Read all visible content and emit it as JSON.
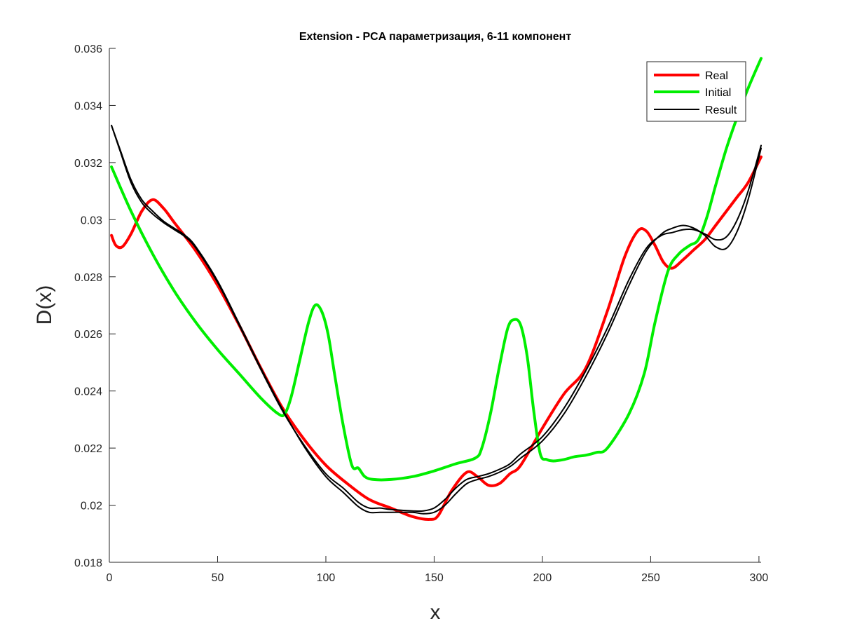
{
  "chart_data": {
    "type": "line",
    "title": "Extension - PCA параметризация, 6-11 компонент",
    "xlabel": "x",
    "ylabel": "D(x)",
    "xlim": [
      0,
      301
    ],
    "ylim": [
      0.018,
      0.036
    ],
    "xticks": [
      0,
      50,
      100,
      150,
      200,
      250,
      300
    ],
    "yticks": [
      0.018,
      0.02,
      0.022,
      0.024,
      0.026,
      0.028,
      0.03,
      0.032,
      0.034,
      0.036
    ],
    "xtick_labels": [
      "0",
      "50",
      "100",
      "150",
      "200",
      "250",
      "300"
    ],
    "ytick_labels": [
      "0.018",
      "0.02",
      "0.022",
      "0.024",
      "0.026",
      "0.028",
      "0.03",
      "0.032",
      "0.034",
      "0.036"
    ],
    "grid": false,
    "legend": {
      "position": "top-right",
      "entries": [
        "Real",
        "Initial",
        "Result"
      ]
    },
    "series": [
      {
        "name": "Real",
        "color": "#ff0000",
        "width": 4,
        "x": [
          1,
          3,
          6,
          10,
          15,
          20,
          25,
          30,
          40,
          50,
          60,
          70,
          80,
          90,
          100,
          110,
          120,
          130,
          140,
          148,
          152,
          158,
          165,
          170,
          175,
          180,
          185,
          190,
          200,
          210,
          220,
          230,
          238,
          244,
          248,
          252,
          256,
          260,
          265,
          270,
          275,
          280,
          285,
          290,
          295,
          301
        ],
        "y": [
          0.02945,
          0.0291,
          0.02905,
          0.0295,
          0.0303,
          0.0307,
          0.0304,
          0.0299,
          0.0289,
          0.0277,
          0.0263,
          0.0248,
          0.0234,
          0.0223,
          0.0214,
          0.02075,
          0.0202,
          0.0199,
          0.0196,
          0.0195,
          0.01965,
          0.0205,
          0.02115,
          0.021,
          0.0207,
          0.02075,
          0.0211,
          0.0214,
          0.0227,
          0.0239,
          0.0248,
          0.0268,
          0.0287,
          0.0296,
          0.0296,
          0.0291,
          0.0285,
          0.0283,
          0.0286,
          0.02895,
          0.0293,
          0.0298,
          0.0303,
          0.0308,
          0.0313,
          0.0322
        ]
      },
      {
        "name": "Initial",
        "color": "#00ee00",
        "width": 4,
        "x": [
          1,
          10,
          20,
          30,
          40,
          50,
          60,
          70,
          78,
          81,
          84,
          88,
          92,
          95,
          98,
          101,
          104,
          108,
          112,
          115,
          118,
          122,
          130,
          140,
          150,
          160,
          169,
          172,
          176,
          180,
          184,
          187,
          190,
          193,
          196,
          199,
          202,
          205,
          210,
          215,
          220,
          225,
          230,
          240,
          247,
          252,
          258,
          263,
          268,
          272,
          276,
          280,
          285,
          290,
          295,
          301
        ],
        "y": [
          0.03185,
          0.0303,
          0.0288,
          0.0275,
          0.0264,
          0.02545,
          0.0246,
          0.02375,
          0.0232,
          0.0232,
          0.0238,
          0.0251,
          0.0264,
          0.027,
          0.0268,
          0.026,
          0.0246,
          0.0228,
          0.0214,
          0.0213,
          0.021,
          0.0209,
          0.0209,
          0.021,
          0.0212,
          0.02145,
          0.02165,
          0.022,
          0.0232,
          0.0248,
          0.0262,
          0.0265,
          0.0263,
          0.0252,
          0.0233,
          0.0218,
          0.0216,
          0.02155,
          0.0216,
          0.0217,
          0.02175,
          0.02185,
          0.022,
          0.0232,
          0.0246,
          0.0264,
          0.0282,
          0.0288,
          0.0291,
          0.0293,
          0.0301,
          0.0312,
          0.0325,
          0.0336,
          0.0346,
          0.03565
        ]
      },
      {
        "name": "Result",
        "color": "#000000",
        "width": 2,
        "x": [
          1,
          5,
          10,
          15,
          20,
          25,
          30,
          35,
          40,
          50,
          60,
          70,
          80,
          90,
          100,
          108,
          115,
          120,
          125,
          130,
          140,
          145,
          150,
          155,
          160,
          165,
          170,
          175,
          180,
          185,
          190,
          200,
          210,
          220,
          230,
          240,
          248,
          255,
          260,
          265,
          270,
          275,
          280,
          285,
          290,
          295,
          301
        ],
        "y": [
          0.0333,
          0.0324,
          0.0313,
          0.0306,
          0.0302,
          0.0299,
          0.02965,
          0.0294,
          0.029,
          0.0278,
          0.0263,
          0.02475,
          0.0233,
          0.0221,
          0.0211,
          0.0206,
          0.0201,
          0.0199,
          0.0199,
          0.01985,
          0.0198,
          0.0198,
          0.0199,
          0.0202,
          0.0206,
          0.0209,
          0.021,
          0.0211,
          0.02125,
          0.02145,
          0.0218,
          0.0224,
          0.0234,
          0.0247,
          0.0262,
          0.0279,
          0.029,
          0.02945,
          0.02955,
          0.02965,
          0.02965,
          0.0295,
          0.0293,
          0.0294,
          0.03,
          0.031,
          0.0326
        ]
      },
      {
        "name": "",
        "color": "#000000",
        "width": 2,
        "x": [
          1,
          5,
          10,
          15,
          20,
          25,
          30,
          35,
          40,
          50,
          60,
          70,
          80,
          90,
          100,
          108,
          115,
          120,
          125,
          130,
          140,
          145,
          150,
          155,
          160,
          165,
          170,
          175,
          180,
          185,
          190,
          200,
          210,
          220,
          230,
          240,
          248,
          255,
          260,
          265,
          270,
          275,
          280,
          285,
          290,
          295,
          301
        ],
        "y": [
          0.0333,
          0.03245,
          0.0314,
          0.0307,
          0.0303,
          0.02995,
          0.0297,
          0.02945,
          0.02905,
          0.02785,
          0.02635,
          0.0248,
          0.02335,
          0.02205,
          0.021,
          0.02045,
          0.01995,
          0.01975,
          0.01975,
          0.01975,
          0.01975,
          0.0197,
          0.01975,
          0.02,
          0.0204,
          0.02075,
          0.0209,
          0.021,
          0.02115,
          0.02135,
          0.02165,
          0.02225,
          0.0232,
          0.0245,
          0.026,
          0.0277,
          0.0289,
          0.0295,
          0.0297,
          0.0298,
          0.0297,
          0.02945,
          0.02905,
          0.029,
          0.0296,
          0.0307,
          0.0325
        ]
      }
    ]
  }
}
